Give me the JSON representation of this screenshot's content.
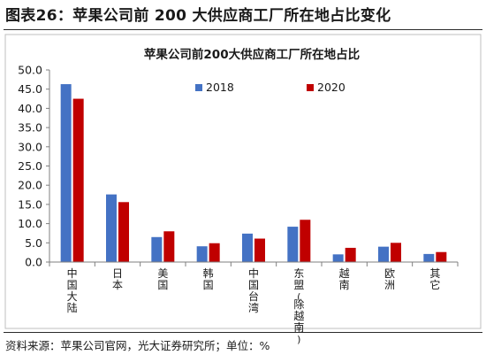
{
  "figure": {
    "title": "图表26：苹果公司前 200 大供应商工厂所在地占比变化",
    "source": "资料来源：苹果公司官网，光大证券研究所；单位：%"
  },
  "colors": {
    "series_2018": "#4472C4",
    "series_2020": "#C00000",
    "axis": "#7f7f7f"
  },
  "chart_data": {
    "type": "bar",
    "title": "苹果公司前200大供应商工厂所在地占比",
    "categories": [
      "中国大陆",
      "日本",
      "美国",
      "韩国",
      "中国台湾",
      "东盟(除越南)",
      "越南",
      "欧洲",
      "其它"
    ],
    "series": [
      {
        "name": "2018",
        "values": [
          46.3,
          17.6,
          6.5,
          4.1,
          7.4,
          9.2,
          2.0,
          4.0,
          2.1
        ]
      },
      {
        "name": "2020",
        "values": [
          42.5,
          15.6,
          8.0,
          4.9,
          6.1,
          11.0,
          3.7,
          5.0,
          2.6
        ]
      }
    ],
    "ylim": [
      0,
      50
    ],
    "yticks": [
      "0.0",
      "5.0",
      "10.0",
      "15.0",
      "20.0",
      "25.0",
      "30.0",
      "35.0",
      "40.0",
      "45.0",
      "50.0"
    ],
    "grid": false,
    "legend_position": "top-right"
  }
}
